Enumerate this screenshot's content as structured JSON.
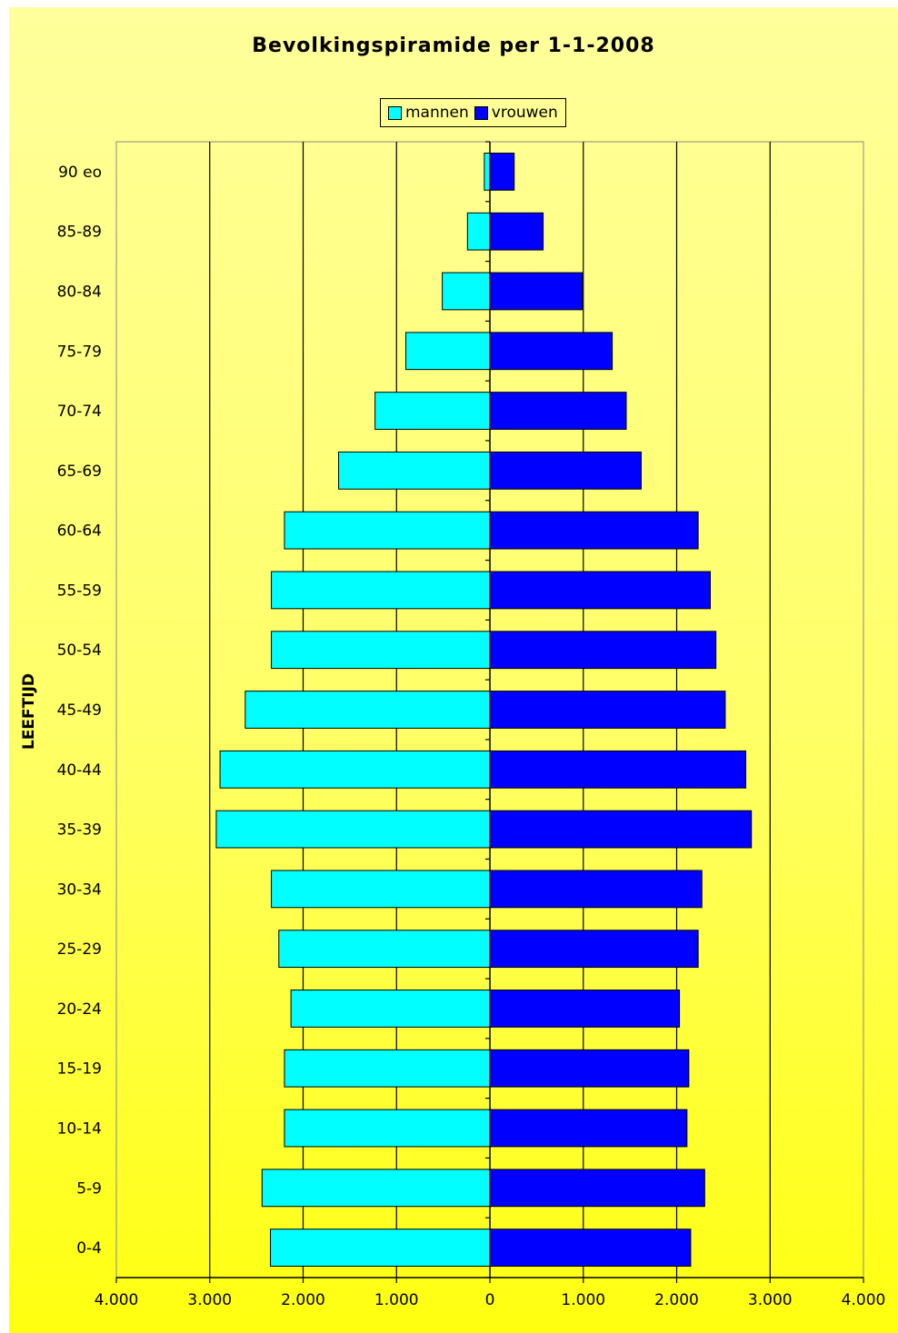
{
  "chart_data": {
    "type": "bar",
    "orientation": "horizontal",
    "title": "Bevolkingspiramide per 1-1-2008",
    "ylabel": "LEEFTIJD",
    "xlabel": "",
    "xlim": [
      -4000,
      4000
    ],
    "x_ticks": [
      -4000,
      -3000,
      -2000,
      -1000,
      0,
      1000,
      2000,
      3000,
      4000
    ],
    "x_tick_labels": [
      "4.000",
      "3.000",
      "2.000",
      "1.000",
      "0",
      "1.000",
      "2.000",
      "3.000",
      "4.000"
    ],
    "grid": true,
    "legend_position": "top-center",
    "categories": [
      "0-4",
      "5-9",
      "10-14",
      "15-19",
      "20-24",
      "25-29",
      "30-34",
      "35-39",
      "40-44",
      "45-49",
      "50-54",
      "55-59",
      "60-64",
      "65-69",
      "70-74",
      "75-79",
      "80-84",
      "85-89",
      "90 eo"
    ],
    "series": [
      {
        "name": "mannen",
        "color": "#00ffff",
        "values": [
          2350,
          2440,
          2200,
          2200,
          2130,
          2260,
          2340,
          2930,
          2890,
          2620,
          2340,
          2340,
          2200,
          1620,
          1230,
          900,
          510,
          240,
          60
        ]
      },
      {
        "name": "vrouwen",
        "color": "#0000ff",
        "values": [
          2150,
          2300,
          2110,
          2130,
          2030,
          2230,
          2270,
          2800,
          2740,
          2520,
          2420,
          2360,
          2230,
          1620,
          1460,
          1310,
          990,
          570,
          260
        ]
      }
    ]
  }
}
